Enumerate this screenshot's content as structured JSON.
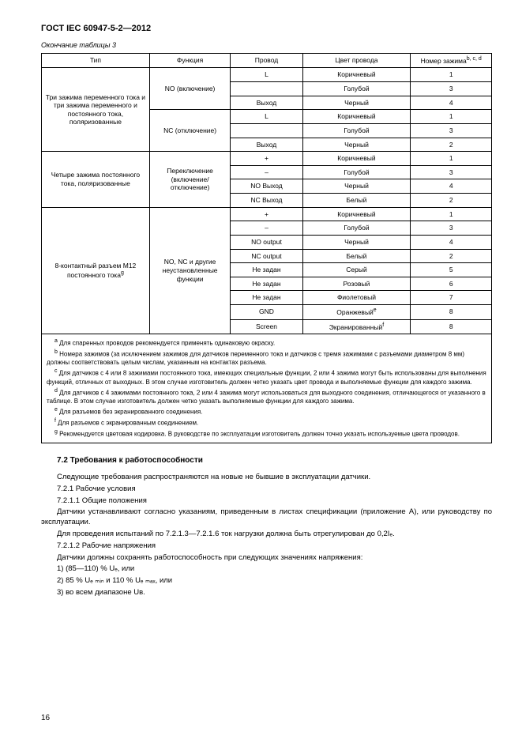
{
  "doc_code": "ГОСТ IEC 60947-5-2—2012",
  "table_caption": "Окончание таблицы 3",
  "page_number": "16",
  "headers": {
    "type": "Тип",
    "function": "Функция",
    "wire": "Провод",
    "wire_color": "Цвет провода",
    "term_no": "Номер зажима",
    "term_sup": "b, c, d"
  },
  "group1": {
    "type_text": "Три зажима перемен­ного тока и три зажима переменного и постоян­ного тока, поляризованные",
    "func_no": "NO (включение)",
    "func_nc": "NC (отключение)",
    "rows": [
      {
        "w": "L",
        "c": "Коричневый",
        "n": "1"
      },
      {
        "w": "",
        "c": "Голубой",
        "n": "3"
      },
      {
        "w": "Выход",
        "c": "Черный",
        "n": "4"
      },
      {
        "w": "L",
        "c": "Коричневый",
        "n": "1"
      },
      {
        "w": "",
        "c": "Голубой",
        "n": "3"
      },
      {
        "w": "Выход",
        "c": "Черный",
        "n": "2"
      }
    ]
  },
  "group2": {
    "type_text": "Четыре зажима постоян­ного тока, поляризованные",
    "func": "Переключение (включение/ отключение)",
    "rows": [
      {
        "w": "+",
        "c": "Коричневый",
        "n": "1"
      },
      {
        "w": "–",
        "c": "Голубой",
        "n": "3"
      },
      {
        "w": "NO Выход",
        "c": "Черный",
        "n": "4"
      },
      {
        "w": "NC Выход",
        "c": "Белый",
        "n": "2"
      }
    ]
  },
  "group3": {
    "type_text": "8-контактный разъем М12 постоянного тока",
    "type_sup": "g",
    "func": "NO, NC и другие неустановленные функции",
    "rows": [
      {
        "w": "+",
        "c": "Коричневый",
        "n": "1"
      },
      {
        "w": "–",
        "c": "Голубой",
        "n": "3"
      },
      {
        "w": "NO output",
        "c": "Черный",
        "n": "4"
      },
      {
        "w": "NC output",
        "c": "Белый",
        "n": "2"
      },
      {
        "w": "Не задан",
        "c": "Серый",
        "n": "5"
      },
      {
        "w": "Не задан",
        "c": "Розовый",
        "n": "6"
      },
      {
        "w": "Не задан",
        "c": "Фиолетовый",
        "n": "7"
      },
      {
        "w": "GND",
        "c": "Оранжевый",
        "ce": "e",
        "n": "8"
      },
      {
        "w": "Screen",
        "c": "Экранированный",
        "ce": "f",
        "n": "8"
      }
    ]
  },
  "footnotes": [
    {
      "s": "a",
      "t": "Для спаренных проводов рекомендуется применять одинаковую окраску."
    },
    {
      "s": "b",
      "t": "Номера зажимов (за исключением зажимов для датчиков переменного тока и датчиков с тремя зажима­ми с разъемами диаметром 8 мм) должны соответствовать целым числам, указанным на контактах разъема."
    },
    {
      "s": "c",
      "t": "Для датчиков с 4 или 8 зажимами постоянного тока, имеющих специальные функции, 2 или 4 зажима могут быть использованы для выполнения функций, отличных от выходных. В этом случае изготовитель должен четко указать цвет провода и выполняемые функции для каждого зажима."
    },
    {
      "s": "d",
      "t": "Для датчиков с 4 зажимами постоянного тока, 2 или 4 зажима могут использоваться для выходного соедине­ния, отличающегося от указанного в таблице. В этом случае изготовитель должен четко указать выполняемые функции для каждого зажима."
    },
    {
      "s": "e",
      "t": "Для разъемов без экранированного соединения."
    },
    {
      "s": "f",
      "t": "Для разъемов с экранированным соединением."
    },
    {
      "s": "g",
      "t": "Рекомендуется цветовая кодировка. В руководстве по эксплуатации изготовитель должен точно указать ис­пользуемые цвета проводов."
    }
  ],
  "section": {
    "title": "7.2 Требования к работоспособности",
    "paras": [
      "Следующие требования распространяются на новые не бывшие в эксплуатации датчики.",
      "7.2.1 Рабочие условия",
      "7.2.1.1 Общие положения",
      "Датчики устанавливают согласно указаниям, приведенным в листах спецификации (приложе­ние А), или руководству по эксплуатации.",
      "Для проведения испытаний по 7.2.1.3—7.2.1.6 ток нагрузки должна быть отрегулирован до 0,2Iₑ.",
      "7.2.1.2 Рабочие напряжения",
      "Датчики должны сохранять работоспособность при следующих значениях напряжения:",
      "1) (85—110) % Uₑ, или",
      "2) 85 % Uₑ ₘᵢₙ  и 110 % Uₑ ₘₐₓ, или",
      "3) во всем диапазоне Uв."
    ]
  }
}
